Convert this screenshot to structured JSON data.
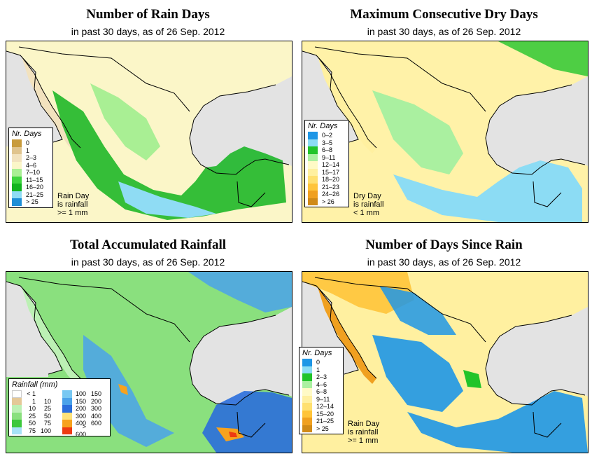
{
  "panels": [
    {
      "id": "rain-days",
      "title": "Number of Rain Days",
      "subtitle": "in past 30 days, as of  26 Sep. 2012",
      "legend": {
        "title": "Nr. Days",
        "items": [
          {
            "label": "0",
            "color": "#c89b3c"
          },
          {
            "label": "1",
            "color": "#e0c48e"
          },
          {
            "label": "2–3",
            "color": "#f2e2be"
          },
          {
            "label": "4–6",
            "color": "#fbf6c8"
          },
          {
            "label": "7–10",
            "color": "#a9ef94"
          },
          {
            "label": "11–15",
            "color": "#3ed43e"
          },
          {
            "label": "16–20",
            "color": "#12b41e"
          },
          {
            "label": "21–25",
            "color": "#8fdcf4"
          },
          {
            "label": "> 25",
            "color": "#1e8ed6"
          }
        ]
      },
      "note": [
        "Rain Day",
        "is rainfall",
        ">= 1 mm"
      ]
    },
    {
      "id": "dry-days",
      "title": "Maximum Consecutive Dry Days",
      "subtitle": "in past 30 days, as of  26 Sep. 2012",
      "legend": {
        "title": "Nr. Days",
        "items": [
          {
            "label": "0–2",
            "color": "#1e96e6"
          },
          {
            "label": "3–5",
            "color": "#8cdcf4"
          },
          {
            "label": "6–8",
            "color": "#22c42a"
          },
          {
            "label": "9–11",
            "color": "#aaf0a0"
          },
          {
            "label": "12–14",
            "color": "#fffac6"
          },
          {
            "label": "15–17",
            "color": "#fff0a0"
          },
          {
            "label": "18–20",
            "color": "#ffe070"
          },
          {
            "label": "21–23",
            "color": "#ffc43a"
          },
          {
            "label": "24–26",
            "color": "#f0a020"
          },
          {
            "label": "> 26",
            "color": "#d08a18"
          }
        ]
      },
      "note": [
        "Dry Day",
        "is rainfall",
        "< 1 mm"
      ]
    },
    {
      "id": "total-rainfall",
      "title": "Total Accumulated Rainfall",
      "subtitle": "in past 30 days, as of  26 Sep. 2012",
      "legend": {
        "title": "Rainfall (mm)",
        "left_items": [
          {
            "a": "< 1",
            "b": "",
            "color": "#ffffff"
          },
          {
            "a": "1",
            "b": "10",
            "color": "#e4c898"
          },
          {
            "a": "10",
            "b": "25",
            "color": "#bcf0b4"
          },
          {
            "a": "25",
            "b": "50",
            "color": "#8ae07e"
          },
          {
            "a": "50",
            "b": "75",
            "color": "#3cc83c"
          },
          {
            "a": "75",
            "b": "100",
            "color": "#a6e2f6"
          }
        ],
        "right_items": [
          {
            "a": "100",
            "b": "150",
            "color": "#78c8f2"
          },
          {
            "a": "150",
            "b": "200",
            "color": "#4aa2ea"
          },
          {
            "a": "200",
            "b": "300",
            "color": "#2a6edc"
          },
          {
            "a": "300",
            "b": "400",
            "color": "#fde27a"
          },
          {
            "a": "400",
            "b": "600",
            "color": "#f7a21e"
          },
          {
            "a": "> 600",
            "b": "",
            "color": "#ee3a12"
          }
        ]
      }
    },
    {
      "id": "days-since-rain",
      "title": "Number of Days Since Rain",
      "subtitle": "in past 30 days, as of  26 Sep. 2012",
      "legend": {
        "title": "Nr. Days",
        "items": [
          {
            "label": "0",
            "color": "#1e96e6"
          },
          {
            "label": "1",
            "color": "#8cdcf4"
          },
          {
            "label": "2–3",
            "color": "#22c42a"
          },
          {
            "label": "4–6",
            "color": "#aaf0a0"
          },
          {
            "label": "6–8",
            "color": "#fffac6"
          },
          {
            "label": "9–11",
            "color": "#fff0a0"
          },
          {
            "label": "12–14",
            "color": "#ffe070"
          },
          {
            "label": "15–20",
            "color": "#ffc43a"
          },
          {
            "label": "21–25",
            "color": "#f0a020"
          },
          {
            "label": "> 25",
            "color": "#d08a18"
          }
        ]
      },
      "note": [
        "Rain Day",
        "is rainfall",
        ">= 1 mm"
      ]
    }
  ],
  "colors": {
    "land_rain": "#fbf6c8",
    "land_dry": "#fff2a8",
    "land_total": "#8ae07e",
    "land_since": "#fff0a0",
    "water": "#e3e3e3"
  }
}
